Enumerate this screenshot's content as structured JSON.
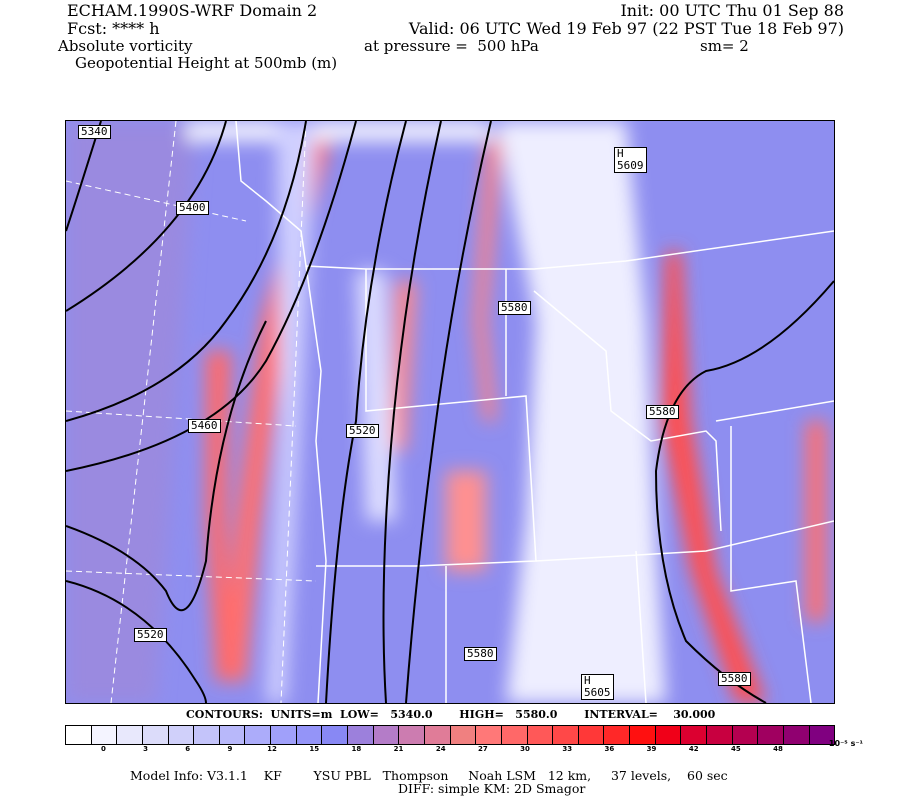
{
  "header": {
    "title": "ECHAM.1990S-WRF Domain 2",
    "init": "Init: 00 UTC Thu 01 Sep 88",
    "fcst": "Fcst: **** h",
    "valid": "Valid: 06 UTC Wed 19 Feb 97 (22 PST Tue 18 Feb 97)",
    "field": "Absolute vorticity",
    "pressure": "at pressure =  500 hPa",
    "smoothing": "sm= 2",
    "overlay": "Geopotential Height at 500mb (m)"
  },
  "map": {
    "contour_labels": [
      "5340",
      "5400",
      "5460",
      "5520",
      "5520",
      "5580",
      "5580",
      "5580",
      "5580"
    ],
    "highs": [
      {
        "letter": "H",
        "value": "5609"
      },
      {
        "letter": "H",
        "value": "5605"
      }
    ],
    "background_color": "#8e8ef0"
  },
  "contour_info": "CONTOURS:  UNITS=m  LOW=   5340.0       HIGH=   5580.0       INTERVAL=    30.000",
  "colorbar": {
    "ticks": [
      "0",
      "3",
      "6",
      "9",
      "12",
      "15",
      "18",
      "21",
      "24",
      "27",
      "30",
      "33",
      "36",
      "39",
      "42",
      "45",
      "48"
    ],
    "units": "10⁻⁵ s⁻¹",
    "colors": [
      "#ffffff",
      "#f4f4ff",
      "#e8e8fc",
      "#dcdcfa",
      "#d0d0fa",
      "#c4c4fa",
      "#b8b8fa",
      "#acacfa",
      "#a0a0fa",
      "#9494f8",
      "#8888f4",
      "#9c80dc",
      "#b47cc8",
      "#cc7cb0",
      "#e07c98",
      "#f08080",
      "#ff7878",
      "#ff6868",
      "#ff5858",
      "#ff4848",
      "#ff3838",
      "#ff2828",
      "#ff1010",
      "#f00018",
      "#dc0030",
      "#c80040",
      "#b40050",
      "#a00060",
      "#900070",
      "#800080"
    ]
  },
  "footer": {
    "line1": "Model Info: V3.1.1    KF        YSU PBL   Thompson     Noah LSM   12 km,     37 levels,    60 sec",
    "line2": "DIFF: simple KM: 2D Smagor"
  }
}
